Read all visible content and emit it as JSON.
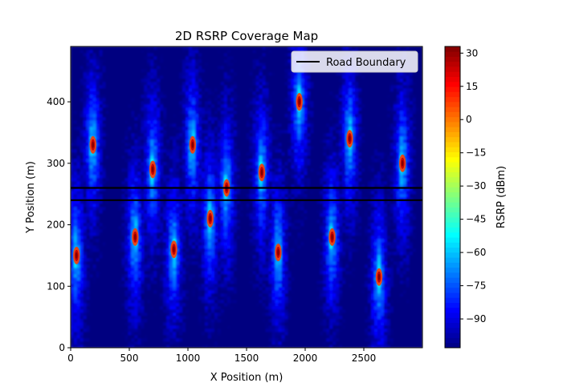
{
  "chart_data": {
    "type": "heatmap",
    "title": "2D RSRP Coverage Map",
    "xlabel": "X Position (m)",
    "ylabel": "Y Position (m)",
    "xlim": [
      0,
      3000
    ],
    "ylim": [
      0,
      490
    ],
    "x_ticks": [
      0,
      500,
      1000,
      1500,
      2000,
      2500
    ],
    "y_ticks": [
      0,
      100,
      200,
      300,
      400
    ],
    "colorbar": {
      "label": "RSRP (dBm)",
      "colormap": "jet",
      "range": [
        -103,
        33
      ],
      "ticks": [
        30,
        15,
        0,
        -15,
        -30,
        -45,
        -60,
        -75,
        -90
      ]
    },
    "legend": {
      "location": "upper-right",
      "entries": [
        {
          "label": "Road Boundary",
          "color": "#000000"
        }
      ]
    },
    "road_boundaries_y": [
      240,
      260
    ],
    "hotspots": [
      {
        "x": 50,
        "y": 150,
        "peak_rsrp": 30
      },
      {
        "x": 190,
        "y": 330,
        "peak_rsrp": 30
      },
      {
        "x": 550,
        "y": 180,
        "peak_rsrp": 30
      },
      {
        "x": 700,
        "y": 290,
        "peak_rsrp": 30
      },
      {
        "x": 880,
        "y": 160,
        "peak_rsrp": 30
      },
      {
        "x": 1040,
        "y": 330,
        "peak_rsrp": 30
      },
      {
        "x": 1190,
        "y": 210,
        "peak_rsrp": 30
      },
      {
        "x": 1330,
        "y": 260,
        "peak_rsrp": 30
      },
      {
        "x": 1630,
        "y": 285,
        "peak_rsrp": 30
      },
      {
        "x": 1770,
        "y": 155,
        "peak_rsrp": 30
      },
      {
        "x": 1950,
        "y": 400,
        "peak_rsrp": 30
      },
      {
        "x": 2230,
        "y": 180,
        "peak_rsrp": 30
      },
      {
        "x": 2380,
        "y": 340,
        "peak_rsrp": 30
      },
      {
        "x": 2630,
        "y": 115,
        "peak_rsrp": 30
      },
      {
        "x": 2830,
        "y": 300,
        "peak_rsrp": 30
      }
    ]
  }
}
